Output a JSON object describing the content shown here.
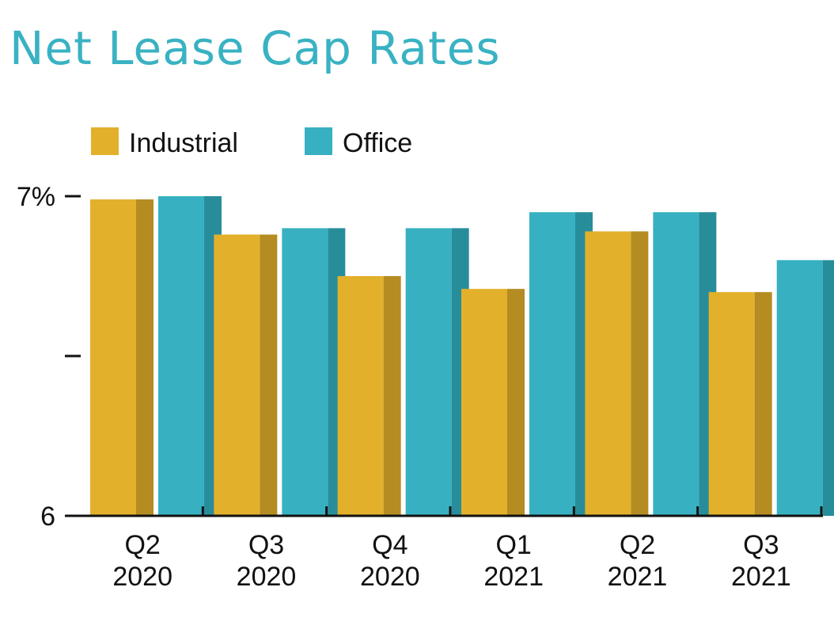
{
  "colors": {
    "title": "#39b2c3",
    "industrial": "#e2b02b",
    "industrial_shade": "#b48c22",
    "office": "#37b1c2",
    "office_shade": "#288d9b",
    "axis": "#111111"
  },
  "chart_data": {
    "type": "bar",
    "title": "Net Lease Cap Rates",
    "subtitle": "",
    "xlabel": "",
    "ylabel": "",
    "categories": [
      [
        "Q2",
        "2020"
      ],
      [
        "Q3",
        "2020"
      ],
      [
        "Q4",
        "2020"
      ],
      [
        "Q1",
        "2021"
      ],
      [
        "Q2",
        "2021"
      ],
      [
        "Q3",
        "2021"
      ]
    ],
    "series": [
      {
        "name": "Industrial",
        "values": [
          6.99,
          6.88,
          6.75,
          6.71,
          6.89,
          6.7
        ]
      },
      {
        "name": "Office",
        "values": [
          7.0,
          6.9,
          6.9,
          6.95,
          6.95,
          6.8
        ]
      }
    ],
    "ylim": [
      6,
      7
    ],
    "y_ticks": [
      {
        "value": 7,
        "label": "7%"
      },
      {
        "value": 6.5,
        "label": ""
      },
      {
        "value": 6,
        "label": "6"
      }
    ],
    "legend_position": "top-left",
    "grid": false
  }
}
